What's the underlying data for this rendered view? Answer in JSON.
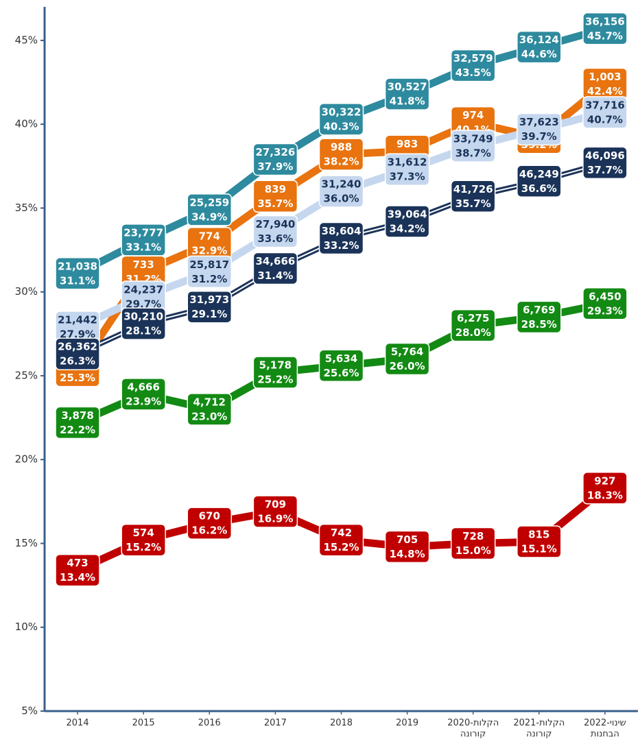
{
  "chart_data": {
    "type": "line",
    "categories": [
      "2014",
      "2015",
      "2016",
      "2017",
      "2018",
      "2019",
      "2020-הקלות קורונה",
      "2021-הקלות קורונה",
      "2022-שינוי הבחנות"
    ],
    "ylim": [
      5,
      47
    ],
    "yticks": [
      {
        "value": 5,
        "label": "5%"
      },
      {
        "value": 10,
        "label": "10%"
      },
      {
        "value": 15,
        "label": "15%"
      },
      {
        "value": 20,
        "label": "20%"
      },
      {
        "value": 25,
        "label": "25%"
      },
      {
        "value": 30,
        "label": "30%"
      },
      {
        "value": 35,
        "label": "35%"
      },
      {
        "value": 40,
        "label": "40%"
      },
      {
        "value": 45,
        "label": "45%"
      }
    ],
    "series": [
      {
        "color": "#2e8a9e",
        "label_color": "#ffffff",
        "values": [
          31.1,
          33.1,
          34.9,
          37.9,
          40.3,
          41.8,
          43.5,
          44.6,
          45.7
        ],
        "value_labels": [
          "31.1%",
          "33.1%",
          "34.9%",
          "37.9%",
          "40.3%",
          "41.8%",
          "43.5%",
          "44.6%",
          "45.7%"
        ],
        "count_labels": [
          "21,038",
          "23,777",
          "25,259",
          "27,326",
          "30,322",
          "30,527",
          "32,579",
          "36,124",
          "36,156"
        ]
      },
      {
        "color": "#e8730f",
        "label_color": "#ffffff",
        "values": [
          25.3,
          31.2,
          32.9,
          35.7,
          38.2,
          38.4,
          40.1,
          39.2,
          42.4
        ],
        "value_labels": [
          "25.3%",
          "31.2%",
          "32.9%",
          "35.7%",
          "38.2%",
          "38.4%",
          "40.1%",
          "39.2%",
          "42.4%"
        ],
        "count_labels": [
          "569",
          "733",
          "774",
          "839",
          "988",
          "983",
          "974",
          "1,042",
          "1,003"
        ]
      },
      {
        "color": "#c5d7ee",
        "label_color": "#1b3358",
        "values": [
          27.9,
          29.7,
          31.2,
          33.6,
          36.0,
          37.3,
          38.7,
          39.7,
          40.7
        ],
        "value_labels": [
          "27.9%",
          "29.7%",
          "31.2%",
          "33.6%",
          "36.0%",
          "37.3%",
          "38.7%",
          "39.7%",
          "40.7%"
        ],
        "count_labels": [
          "21,442",
          "24,237",
          "25,817",
          "27,940",
          "31,240",
          "31,612",
          "33,749",
          "37,623",
          "37,716"
        ]
      },
      {
        "color": "#1b3358",
        "label_color": "#ffffff",
        "double": true,
        "values": [
          26.3,
          28.1,
          29.1,
          31.4,
          33.2,
          34.2,
          35.7,
          36.6,
          37.7
        ],
        "value_labels": [
          "26.3%",
          "28.1%",
          "29.1%",
          "31.4%",
          "33.2%",
          "34.2%",
          "35.7%",
          "36.6%",
          "37.7%"
        ],
        "count_labels": [
          "26,362",
          "30,210",
          "31,973",
          "34,666",
          "38,604",
          "39,064",
          "41,726",
          "46,249",
          "46,096"
        ]
      },
      {
        "color": "#138a13",
        "label_color": "#ffffff",
        "values": [
          22.2,
          23.9,
          23.0,
          25.2,
          25.6,
          26.0,
          28.0,
          28.5,
          29.3
        ],
        "value_labels": [
          "22.2%",
          "23.9%",
          "23.0%",
          "25.2%",
          "25.6%",
          "26.0%",
          "28.0%",
          "28.5%",
          "29.3%"
        ],
        "count_labels": [
          "3,878",
          "4,666",
          "4,712",
          "5,178",
          "5,634",
          "5,764",
          "6,275",
          "6,769",
          "6,450"
        ]
      },
      {
        "color": "#c00000",
        "label_color": "#ffffff",
        "values": [
          13.4,
          15.2,
          16.2,
          16.9,
          15.2,
          14.8,
          15.0,
          15.1,
          18.3
        ],
        "value_labels": [
          "13.4%",
          "15.2%",
          "16.2%",
          "16.9%",
          "15.2%",
          "14.8%",
          "15.0%",
          "15.1%",
          "18.3%"
        ],
        "count_labels": [
          "473",
          "574",
          "670",
          "709",
          "742",
          "705",
          "728",
          "815",
          "927"
        ]
      }
    ]
  }
}
